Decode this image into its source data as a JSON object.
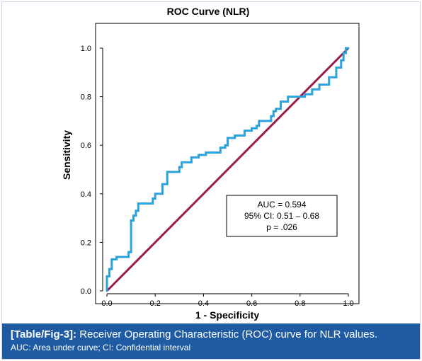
{
  "chart_data": {
    "type": "line",
    "title": "ROC Curve (NLR)",
    "xlabel": "1 - Specificity",
    "ylabel": "Sensitivity",
    "xlim": [
      0,
      1
    ],
    "ylim": [
      0,
      1
    ],
    "x_ticks": [
      "0.0",
      "0.2",
      "0.4",
      "0.6",
      "0.8",
      "1.0"
    ],
    "y_ticks": [
      "0.0",
      "0.2",
      "0.4",
      "0.6",
      "0.8",
      "1.0"
    ],
    "grid": false,
    "series": [
      {
        "color": "#2ba3dc",
        "points": [
          [
            0.0,
            0.0
          ],
          [
            0.0,
            0.06
          ],
          [
            0.01,
            0.06
          ],
          [
            0.01,
            0.09
          ],
          [
            0.02,
            0.09
          ],
          [
            0.02,
            0.13
          ],
          [
            0.04,
            0.13
          ],
          [
            0.04,
            0.14
          ],
          [
            0.09,
            0.14
          ],
          [
            0.09,
            0.16
          ],
          [
            0.1,
            0.16
          ],
          [
            0.1,
            0.2
          ],
          [
            0.1,
            0.29
          ],
          [
            0.11,
            0.29
          ],
          [
            0.11,
            0.31
          ],
          [
            0.12,
            0.31
          ],
          [
            0.12,
            0.33
          ],
          [
            0.13,
            0.33
          ],
          [
            0.13,
            0.36
          ],
          [
            0.19,
            0.36
          ],
          [
            0.19,
            0.38
          ],
          [
            0.2,
            0.38
          ],
          [
            0.2,
            0.4
          ],
          [
            0.23,
            0.4
          ],
          [
            0.23,
            0.44
          ],
          [
            0.25,
            0.44
          ],
          [
            0.25,
            0.49
          ],
          [
            0.3,
            0.49
          ],
          [
            0.3,
            0.51
          ],
          [
            0.31,
            0.51
          ],
          [
            0.31,
            0.53
          ],
          [
            0.35,
            0.53
          ],
          [
            0.35,
            0.55
          ],
          [
            0.38,
            0.55
          ],
          [
            0.38,
            0.56
          ],
          [
            0.41,
            0.56
          ],
          [
            0.41,
            0.57
          ],
          [
            0.47,
            0.57
          ],
          [
            0.47,
            0.59
          ],
          [
            0.49,
            0.59
          ],
          [
            0.49,
            0.6
          ],
          [
            0.5,
            0.6
          ],
          [
            0.5,
            0.63
          ],
          [
            0.53,
            0.63
          ],
          [
            0.53,
            0.64
          ],
          [
            0.57,
            0.64
          ],
          [
            0.57,
            0.66
          ],
          [
            0.6,
            0.66
          ],
          [
            0.6,
            0.67
          ],
          [
            0.62,
            0.67
          ],
          [
            0.62,
            0.68
          ],
          [
            0.63,
            0.68
          ],
          [
            0.63,
            0.7
          ],
          [
            0.68,
            0.7
          ],
          [
            0.68,
            0.72
          ],
          [
            0.69,
            0.72
          ],
          [
            0.69,
            0.74
          ],
          [
            0.7,
            0.74
          ],
          [
            0.7,
            0.75
          ],
          [
            0.72,
            0.75
          ],
          [
            0.72,
            0.78
          ],
          [
            0.75,
            0.78
          ],
          [
            0.75,
            0.8
          ],
          [
            0.82,
            0.8
          ],
          [
            0.82,
            0.81
          ],
          [
            0.85,
            0.81
          ],
          [
            0.85,
            0.83
          ],
          [
            0.88,
            0.83
          ],
          [
            0.88,
            0.85
          ],
          [
            0.92,
            0.85
          ],
          [
            0.92,
            0.88
          ],
          [
            0.95,
            0.88
          ],
          [
            0.95,
            0.92
          ],
          [
            0.97,
            0.92
          ],
          [
            0.97,
            0.95
          ],
          [
            0.98,
            0.95
          ],
          [
            0.98,
            0.98
          ],
          [
            0.99,
            0.98
          ],
          [
            0.99,
            1.0
          ],
          [
            1.0,
            1.0
          ]
        ]
      },
      {
        "color": "#9b1b4a",
        "points": [
          [
            0,
            0
          ],
          [
            1,
            1
          ]
        ]
      }
    ],
    "annotation": {
      "lines": [
        "AUC = 0.594",
        "95% CI: 0.51 – 0.68",
        "p = .026"
      ]
    }
  },
  "caption": {
    "tag": "[Table/Fig-3]:",
    "text": " Receiver Operating Characteristic (ROC) curve for NLR values.",
    "note": "AUC: Area under curve; CI: Confidential interval"
  },
  "colors": {
    "caption_background": "#1f5ba3",
    "roc_curve": "#2ba3dc",
    "reference_line": "#9b1b4a"
  }
}
